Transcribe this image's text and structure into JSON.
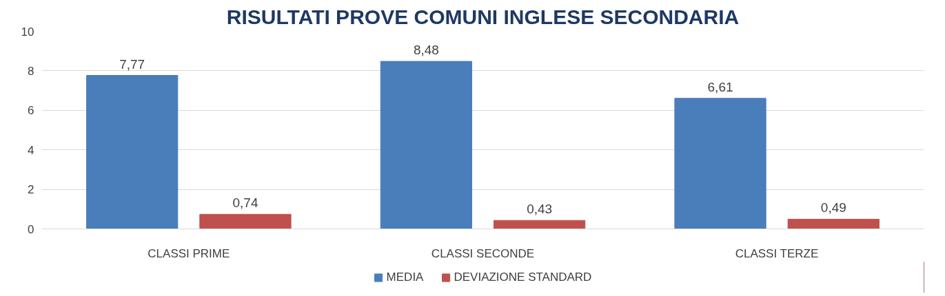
{
  "chart_data": {
    "type": "bar",
    "title": "RISULTATI PROVE COMUNI INGLESE SECONDARIA",
    "categories": [
      "CLASSI PRIME",
      "CLASSI SECONDE",
      "CLASSI TERZE"
    ],
    "series": [
      {
        "name": "MEDIA",
        "color": "#4a7ebb",
        "values": [
          7.77,
          8.48,
          6.61
        ],
        "value_labels": [
          "7,77",
          "8,48",
          "6,61"
        ]
      },
      {
        "name": "DEVIAZIONE STANDARD",
        "color": "#c0504d",
        "values": [
          0.74,
          0.43,
          0.49
        ],
        "value_labels": [
          "0,74",
          "0,43",
          "0,49"
        ]
      }
    ],
    "ylim": [
      0,
      10
    ],
    "yticks": [
      0,
      2,
      4,
      6,
      8,
      10
    ],
    "grid": "y",
    "legend": "bottom"
  }
}
